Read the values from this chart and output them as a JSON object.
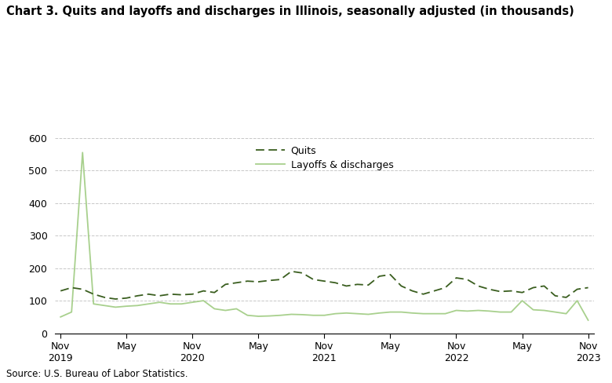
{
  "title": "Chart 3. Quits and layoffs and discharges in Illinois, seasonally adjusted (in thousands)",
  "source": "Source: U.S. Bureau of Labor Statistics.",
  "quits_color": "#3a5e1f",
  "layoffs_color": "#a8d08d",
  "ylim": [
    0,
    600
  ],
  "background_color": "#ffffff",
  "grid_color": "#c8c8c8",
  "quits": [
    130,
    140,
    135,
    120,
    110,
    105,
    108,
    115,
    120,
    115,
    120,
    118,
    120,
    130,
    125,
    150,
    155,
    160,
    158,
    162,
    165,
    190,
    185,
    165,
    160,
    155,
    145,
    150,
    148,
    175,
    180,
    145,
    130,
    120,
    130,
    140,
    170,
    165,
    145,
    135,
    128,
    130,
    125,
    140,
    145,
    115,
    110,
    135,
    140
  ],
  "layoffs": [
    50,
    65,
    555,
    90,
    85,
    80,
    83,
    85,
    90,
    95,
    90,
    90,
    95,
    100,
    75,
    70,
    75,
    55,
    52,
    53,
    55,
    58,
    57,
    55,
    55,
    60,
    62,
    60,
    58,
    62,
    65,
    65,
    62,
    60,
    60,
    60,
    70,
    68,
    70,
    68,
    65,
    65,
    100,
    72,
    70,
    65,
    60,
    100,
    40
  ],
  "major_ticks": [
    0,
    6,
    12,
    18,
    24,
    30,
    36,
    42,
    48
  ],
  "tick_labels": [
    "Nov\n2019",
    "May",
    "Nov\n2020",
    "May",
    "Nov\n2021",
    "May",
    "Nov\n2022",
    "May",
    "Nov\n2023"
  ],
  "legend_labels": [
    "Quits",
    "Layoffs & discharges"
  ],
  "title_fontsize": 10.5,
  "source_fontsize": 8.5,
  "tick_fontsize": 9,
  "legend_fontsize": 9
}
